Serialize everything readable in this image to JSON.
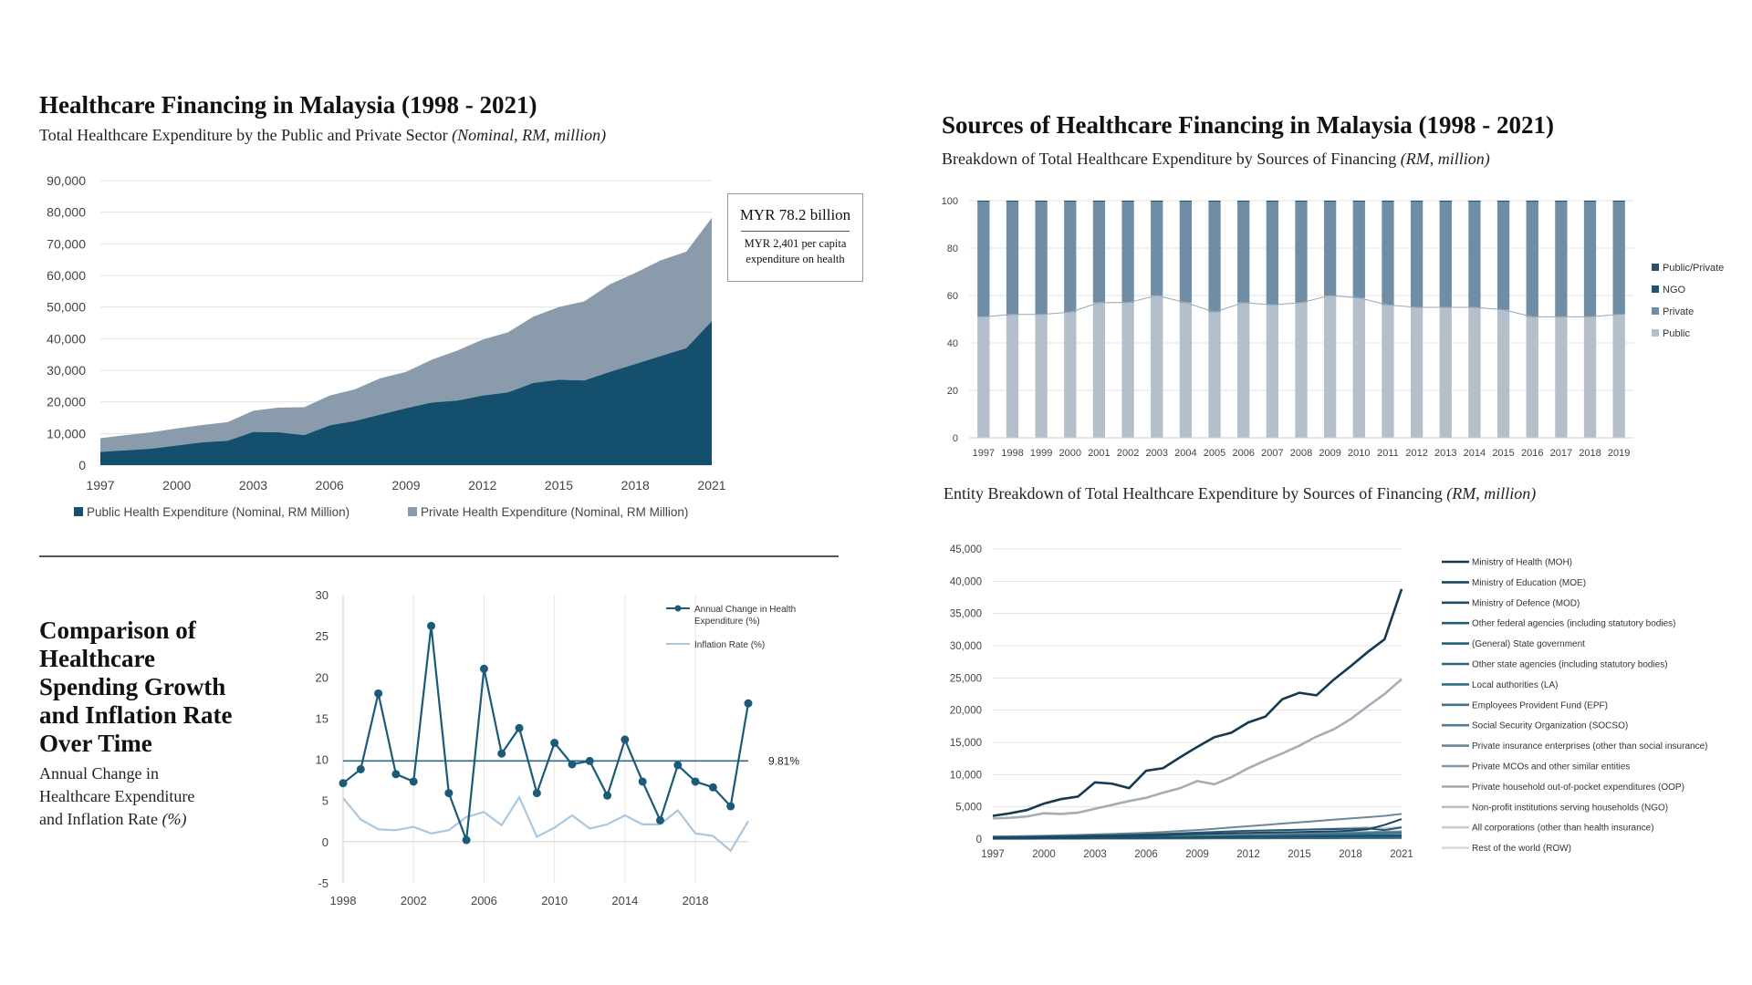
{
  "panels": {
    "p1": {
      "title": "Healthcare Financing in Malaysia (1998 - 2021)",
      "subtitle": "Total Healthcare Expenditure by the Public and Private Sector",
      "subtitle_unit": "(Nominal, RM, million)",
      "callout_main": "MYR 78.2 billion",
      "callout_sub1": "MYR 2,401 per capita",
      "callout_sub2": "expenditure on health"
    },
    "p2": {
      "title": "Sources of Healthcare Financing in Malaysia (1998 - 2021)",
      "subtitle": "Breakdown of Total Healthcare Expenditure by Sources of Financing",
      "subtitle_unit": "(RM, million)"
    },
    "p3": {
      "title_lines": [
        "Comparison of",
        "Healthcare",
        "Spending Growth",
        "and Inflation Rate",
        "Over Time"
      ],
      "subtitle_lines": [
        "Annual Change in",
        "Healthcare Expenditure",
        "and Inflation Rate"
      ],
      "subtitle_unit": "(%)",
      "reference_label": "9.81%"
    },
    "p4": {
      "subtitle": "Entity Breakdown of Total Healthcare Expenditure by Sources of Financing",
      "subtitle_unit": "(RM, million)"
    }
  },
  "colors": {
    "public": "#14506e",
    "private": "#8a9bab",
    "stack_public": "#b3bfcb",
    "stack_private": "#6f8ea5",
    "stack_ngo": "#1f5470",
    "stack_pubpriv": "#2b4f68",
    "growth": "#1b5b78",
    "inflation": "#a9c8e0",
    "ref": "#2f6a86"
  },
  "chart_data": [
    {
      "type": "area",
      "x": [
        1997,
        1998,
        1999,
        2000,
        2001,
        2002,
        2003,
        2004,
        2005,
        2006,
        2007,
        2008,
        2009,
        2010,
        2011,
        2012,
        2013,
        2014,
        2015,
        2016,
        2017,
        2018,
        2019,
        2020,
        2021
      ],
      "x_ticks": [
        "1997",
        "2000",
        "2003",
        "2006",
        "2009",
        "2012",
        "2015",
        "2018",
        "2021"
      ],
      "y_ticks": [
        "0",
        "10,000",
        "20,000",
        "30,000",
        "40,000",
        "50,000",
        "60,000",
        "70,000",
        "80,000",
        "90,000"
      ],
      "ylim": [
        0,
        90000
      ],
      "stacked": true,
      "series": [
        {
          "name": "Public Health Expenditure (Nominal, RM Million)",
          "values": [
            4200,
            4700,
            5200,
            6200,
            7200,
            7700,
            10500,
            10400,
            9500,
            12600,
            14000,
            16000,
            18000,
            19800,
            20400,
            22000,
            23000,
            26000,
            27000,
            26800,
            29500,
            32000,
            34500,
            37000,
            45500
          ]
        },
        {
          "name": "Private Health Expenditure (Nominal, RM Million)",
          "values": [
            4300,
            4800,
            5200,
            5400,
            5500,
            5900,
            6700,
            7800,
            8800,
            9400,
            10000,
            11500,
            11500,
            13500,
            15800,
            17700,
            19000,
            21000,
            23000,
            25000,
            27700,
            28800,
            30300,
            30500,
            32700
          ]
        }
      ],
      "legend_position": "bottom"
    },
    {
      "type": "bar",
      "stacked": true,
      "categories": [
        "1997",
        "1998",
        "1999",
        "2000",
        "2001",
        "2002",
        "2003",
        "2004",
        "2005",
        "2006",
        "2007",
        "2008",
        "2009",
        "2010",
        "2011",
        "2012",
        "2013",
        "2014",
        "2015",
        "2016",
        "2017",
        "2018",
        "2019"
      ],
      "y_ticks": [
        "0",
        "20",
        "40",
        "60",
        "80",
        "100"
      ],
      "ylim": [
        0,
        100
      ],
      "series": [
        {
          "name": "Public",
          "values": [
            51,
            52,
            52,
            53,
            57,
            57,
            60,
            57,
            53,
            57,
            56,
            57,
            60,
            59,
            56,
            55,
            55,
            55,
            54,
            51,
            51,
            51,
            52
          ]
        },
        {
          "name": "Private",
          "values": [
            48.5,
            47.5,
            47.5,
            46.5,
            42.5,
            42.5,
            39.5,
            42.5,
            46.5,
            42.5,
            43.5,
            42.5,
            39.5,
            40.5,
            43.5,
            44.5,
            44.5,
            44.5,
            45.5,
            48.5,
            48.5,
            48.5,
            47.5
          ]
        },
        {
          "name": "NGO",
          "values": [
            0.3,
            0.3,
            0.3,
            0.3,
            0.3,
            0.3,
            0.3,
            0.3,
            0.3,
            0.3,
            0.3,
            0.3,
            0.3,
            0.3,
            0.3,
            0.3,
            0.3,
            0.3,
            0.3,
            0.3,
            0.3,
            0.3,
            0.3
          ]
        },
        {
          "name": "Public/Private",
          "values": [
            0.2,
            0.2,
            0.2,
            0.2,
            0.2,
            0.2,
            0.2,
            0.2,
            0.2,
            0.2,
            0.2,
            0.2,
            0.2,
            0.2,
            0.2,
            0.2,
            0.2,
            0.2,
            0.2,
            0.2,
            0.2,
            0.2,
            0.2
          ]
        }
      ],
      "legend_position": "right"
    },
    {
      "type": "line",
      "x": [
        1998,
        1999,
        2000,
        2001,
        2002,
        2003,
        2004,
        2005,
        2006,
        2007,
        2008,
        2009,
        2010,
        2011,
        2012,
        2013,
        2014,
        2015,
        2016,
        2017,
        2018,
        2019,
        2020,
        2021
      ],
      "x_ticks": [
        "1998",
        "2002",
        "2006",
        "2010",
        "2014",
        "2018"
      ],
      "y_ticks": [
        "-5",
        "0",
        "5",
        "10",
        "15",
        "20",
        "25",
        "30"
      ],
      "ylim": [
        -5,
        30
      ],
      "reference_line": 9.81,
      "series": [
        {
          "name": "Annual Change in Health Expenditure (%)",
          "values": [
            7.1,
            8.8,
            18.0,
            8.2,
            7.3,
            26.2,
            5.9,
            0.2,
            21.0,
            10.7,
            13.8,
            5.9,
            12.0,
            9.4,
            9.8,
            5.6,
            12.4,
            7.3,
            2.6,
            9.3,
            7.3,
            6.6,
            4.3,
            16.8
          ]
        },
        {
          "name": "Inflation Rate (%)",
          "values": [
            5.3,
            2.7,
            1.5,
            1.4,
            1.8,
            1.0,
            1.4,
            3.0,
            3.6,
            2.0,
            5.4,
            0.6,
            1.7,
            3.2,
            1.6,
            2.1,
            3.2,
            2.1,
            2.1,
            3.8,
            1.0,
            0.7,
            -1.1,
            2.5
          ]
        }
      ],
      "legend_position": "top-right"
    },
    {
      "type": "line",
      "x": [
        1997,
        1998,
        1999,
        2000,
        2001,
        2002,
        2003,
        2004,
        2005,
        2006,
        2007,
        2008,
        2009,
        2010,
        2011,
        2012,
        2013,
        2014,
        2015,
        2016,
        2017,
        2018,
        2019,
        2020,
        2021
      ],
      "x_ticks": [
        "1997",
        "2000",
        "2003",
        "2006",
        "2009",
        "2012",
        "2015",
        "2018",
        "2021"
      ],
      "y_ticks": [
        "0",
        "5,000",
        "10,000",
        "15,000",
        "20,000",
        "25,000",
        "30,000",
        "35,000",
        "40,000",
        "45,000"
      ],
      "ylim": [
        0,
        45000
      ],
      "series": [
        {
          "name": "Ministry of Health (MOH)",
          "values": [
            3600,
            4000,
            4500,
            5500,
            6200,
            6600,
            8800,
            8600,
            7900,
            10600,
            11000,
            12700,
            14300,
            15800,
            16500,
            18100,
            19000,
            21700,
            22700,
            22300,
            24700,
            26800,
            29000,
            31000,
            38800
          ]
        },
        {
          "name": "Ministry of Education (MOE)",
          "values": [
            200,
            220,
            250,
            280,
            320,
            350,
            420,
            450,
            500,
            560,
            620,
            700,
            780,
            850,
            900,
            950,
            1000,
            1050,
            1100,
            1150,
            1200,
            1300,
            1500,
            2200,
            3100
          ]
        },
        {
          "name": "Ministry of Defence (MOD)",
          "values": [
            100,
            110,
            120,
            130,
            140,
            150,
            170,
            180,
            190,
            210,
            230,
            250,
            270,
            290,
            310,
            330,
            350,
            370,
            390,
            410,
            430,
            450,
            470,
            500,
            550
          ]
        },
        {
          "name": "Other federal agencies (including statutory bodies)",
          "values": [
            300,
            330,
            360,
            400,
            450,
            500,
            560,
            600,
            650,
            720,
            800,
            900,
            1000,
            1100,
            1200,
            1300,
            1350,
            1400,
            1450,
            1500,
            1550,
            1600,
            1650,
            1400,
            1800
          ]
        },
        {
          "name": "(General) State government",
          "values": [
            150,
            160,
            170,
            180,
            200,
            220,
            240,
            260,
            280,
            300,
            320,
            340,
            360,
            380,
            400,
            420,
            440,
            460,
            480,
            500,
            520,
            540,
            560,
            580,
            600
          ]
        },
        {
          "name": "Other state agencies (including statutory bodies)",
          "values": [
            80,
            90,
            100,
            110,
            120,
            130,
            140,
            150,
            160,
            170,
            180,
            190,
            200,
            210,
            220,
            230,
            240,
            250,
            260,
            270,
            280,
            290,
            300,
            310,
            320
          ]
        },
        {
          "name": "Local authorities (LA)",
          "values": [
            50,
            55,
            60,
            65,
            70,
            75,
            80,
            85,
            90,
            95,
            100,
            105,
            110,
            115,
            120,
            125,
            130,
            135,
            140,
            145,
            150,
            155,
            160,
            165,
            170
          ]
        },
        {
          "name": "Employees Provident Fund (EPF)",
          "values": [
            100,
            110,
            120,
            140,
            160,
            180,
            200,
            220,
            250,
            280,
            310,
            350,
            390,
            430,
            470,
            510,
            550,
            600,
            650,
            700,
            750,
            800,
            850,
            900,
            950
          ]
        },
        {
          "name": "Social Security Organization (SOCSO)",
          "values": [
            100,
            110,
            130,
            150,
            170,
            190,
            210,
            240,
            270,
            300,
            340,
            380,
            420,
            470,
            520,
            570,
            620,
            680,
            740,
            800,
            860,
            920,
            980,
            1050,
            1100
          ]
        },
        {
          "name": "Private insurance enterprises (other than social insurance)",
          "values": [
            400,
            430,
            470,
            520,
            580,
            640,
            720,
            800,
            880,
            970,
            1100,
            1250,
            1400,
            1600,
            1800,
            2000,
            2200,
            2400,
            2600,
            2800,
            3000,
            3200,
            3400,
            3600,
            3900
          ]
        },
        {
          "name": "Private MCOs and other similar entities",
          "values": [
            200,
            220,
            240,
            260,
            290,
            320,
            350,
            380,
            420,
            460,
            500,
            550,
            600,
            650,
            700,
            750,
            800,
            850,
            900,
            950,
            1000,
            1050,
            1100,
            1150,
            1200
          ]
        },
        {
          "name": "Private household out-of-pocket expenditures (OOP)",
          "values": [
            3200,
            3300,
            3500,
            4000,
            3900,
            4100,
            4700,
            5300,
            5900,
            6400,
            7200,
            7900,
            9000,
            8500,
            9600,
            11000,
            12200,
            13300,
            14500,
            15900,
            17000,
            18600,
            20600,
            22500,
            24800
          ]
        },
        {
          "name": "Non-profit institutions serving households (NGO)",
          "values": [
            100,
            110,
            120,
            140,
            160,
            180,
            200,
            220,
            250,
            280,
            310,
            340,
            380,
            420,
            460,
            500,
            540,
            580,
            620,
            660,
            700,
            740,
            780,
            820,
            860
          ]
        },
        {
          "name": "All corporations (other than health insurance)",
          "values": [
            300,
            320,
            350,
            390,
            430,
            470,
            520,
            570,
            620,
            680,
            740,
            810,
            880,
            960,
            1050,
            1150,
            1250,
            1350,
            1450,
            1550,
            1650,
            1750,
            1850,
            1700,
            1900
          ]
        },
        {
          "name": "Rest of the world (ROW)",
          "values": [
            20,
            22,
            24,
            26,
            28,
            30,
            32,
            34,
            36,
            38,
            40,
            42,
            44,
            46,
            48,
            50,
            52,
            54,
            56,
            58,
            60,
            62,
            64,
            66,
            68
          ]
        }
      ],
      "legend_position": "right"
    }
  ]
}
